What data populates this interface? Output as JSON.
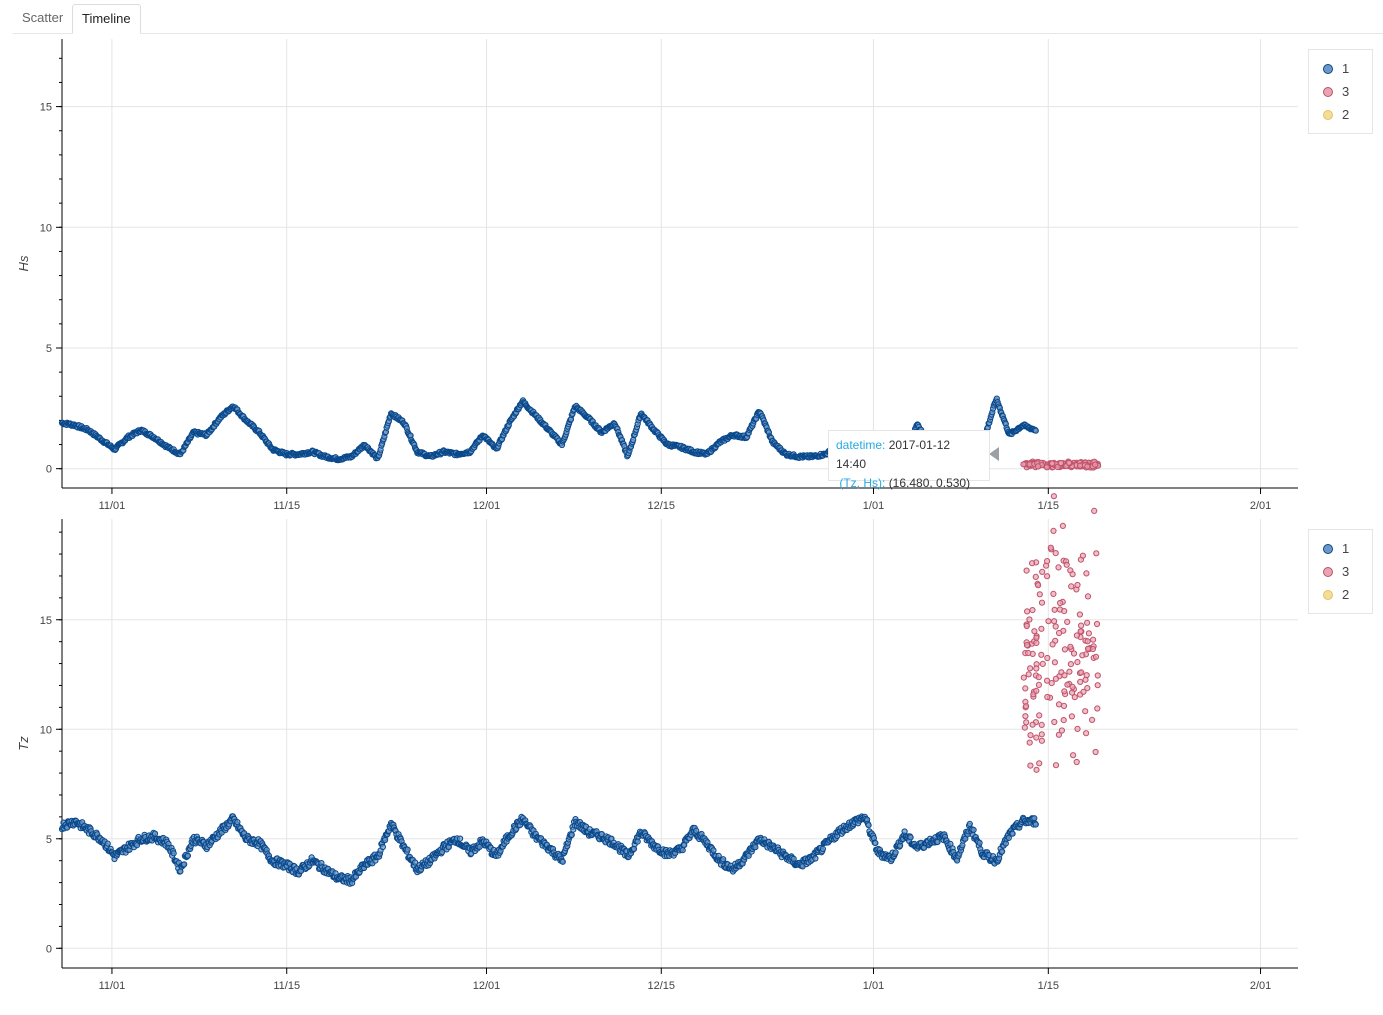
{
  "tabs": [
    {
      "label": "Scatter",
      "active": false
    },
    {
      "label": "Timeline",
      "active": true
    }
  ],
  "colors": {
    "series1": "#08488b",
    "series3": "#c0526a",
    "series2": "#e8c15a",
    "grid": "#e5e5e5"
  },
  "legend": [
    {
      "label": "1",
      "color": "#08488b"
    },
    {
      "label": "3",
      "color": "#c0526a"
    },
    {
      "label": "2",
      "color": "#e8c15a"
    }
  ],
  "tooltip": {
    "datetime_label": "datetime:",
    "datetime_value": "2017-01-12 14:40",
    "point_label": "(Tz, Hs):",
    "point_value": "(16.480, 0.530)"
  },
  "chart_data": [
    {
      "type": "scatter",
      "xlabel": "",
      "ylabel": "Hs",
      "x_type": "datetime",
      "xlim": [
        "2016-10-28",
        "2017-02-04"
      ],
      "ylim": [
        -0.8,
        17.8
      ],
      "x_ticks": [
        "11/01",
        "11/15",
        "12/01",
        "12/15",
        "1/01",
        "1/15",
        "2/01"
      ],
      "y_ticks": [
        0,
        5,
        10,
        15
      ],
      "grid": true,
      "legend_position": "right",
      "series": [
        {
          "name": "1",
          "x_range": [
            "2016-10-28",
            "2017-01-14"
          ],
          "values": [
            1.9,
            1.8,
            1.6,
            1.2,
            0.8,
            1.3,
            1.6,
            1.3,
            0.9,
            0.6,
            1.5,
            1.4,
            2.1,
            2.6,
            2.0,
            1.5,
            0.8,
            0.6,
            0.6,
            0.7,
            0.5,
            0.4,
            0.5,
            1.0,
            0.4,
            2.3,
            1.9,
            0.7,
            0.5,
            0.7,
            0.6,
            0.7,
            1.4,
            0.8,
            1.9,
            2.8,
            2.2,
            1.6,
            1.0,
            2.6,
            2.1,
            1.5,
            1.9,
            0.5,
            2.3,
            1.6,
            1.0,
            0.9,
            0.7,
            0.6,
            1.1,
            1.4,
            1.3,
            2.4,
            1.1,
            0.6,
            0.5,
            0.5,
            0.6,
            0.9,
            1.2,
            1.4,
            1.0,
            0.6,
            0.6,
            1.8,
            1.0,
            0.8,
            1.5,
            0.7,
            1.1,
            2.9,
            1.4,
            1.8,
            1.6
          ]
        },
        {
          "name": "3",
          "x_range": [
            "2017-01-13",
            "2017-01-19"
          ],
          "values": [
            0.2,
            0.15,
            0.1,
            0.2,
            0.15,
            0.25,
            0.1,
            0.2,
            0.2,
            0.15,
            0.2,
            0.1,
            0.25,
            0.2,
            0.15,
            0.1
          ]
        },
        {
          "name": "2",
          "values": []
        }
      ]
    },
    {
      "type": "scatter",
      "xlabel": "",
      "ylabel": "Tz",
      "x_type": "datetime",
      "xlim": [
        "2016-10-28",
        "2017-02-04"
      ],
      "ylim": [
        -0.9,
        19.6
      ],
      "x_ticks": [
        "11/01",
        "11/15",
        "12/01",
        "12/15",
        "1/01",
        "1/15",
        "2/01"
      ],
      "y_ticks": [
        0,
        5,
        10,
        15
      ],
      "grid": true,
      "legend_position": "right",
      "series": [
        {
          "name": "1",
          "x_range": [
            "2016-10-28",
            "2017-01-14"
          ],
          "values": [
            5.6,
            5.8,
            5.4,
            5.0,
            4.2,
            4.6,
            5.0,
            5.1,
            4.8,
            3.6,
            5.0,
            4.7,
            5.3,
            5.9,
            5.0,
            4.8,
            4.0,
            3.8,
            3.5,
            4.0,
            3.6,
            3.2,
            3.1,
            3.8,
            4.2,
            5.7,
            4.6,
            3.6,
            4.0,
            4.6,
            5.0,
            4.4,
            4.9,
            4.2,
            5.2,
            5.9,
            5.1,
            4.6,
            4.0,
            5.8,
            5.3,
            5.1,
            4.8,
            4.2,
            5.3,
            4.7,
            4.3,
            4.5,
            5.4,
            4.8,
            4.0,
            3.6,
            4.2,
            5.0,
            4.6,
            4.2,
            3.8,
            4.1,
            4.7,
            5.3,
            5.7,
            6.0,
            4.4,
            4.1,
            5.2,
            4.6,
            4.9,
            5.1,
            4.1,
            5.6,
            4.3,
            4.0,
            5.2,
            5.8,
            5.8
          ]
        },
        {
          "name": "3",
          "x_range": [
            "2017-01-13",
            "2017-01-19"
          ],
          "values": [
            9.8,
            16.2,
            12.1,
            17.8,
            10.5,
            16.4,
            13.0,
            11.2,
            14.6,
            12.4,
            15.4,
            18.9,
            11.0,
            13.5,
            12.2,
            16.0,
            10.9,
            14.2,
            12.6,
            9.4,
            11.8,
            13.1,
            15.8,
            12.5
          ]
        },
        {
          "name": "2",
          "values": []
        }
      ]
    }
  ]
}
